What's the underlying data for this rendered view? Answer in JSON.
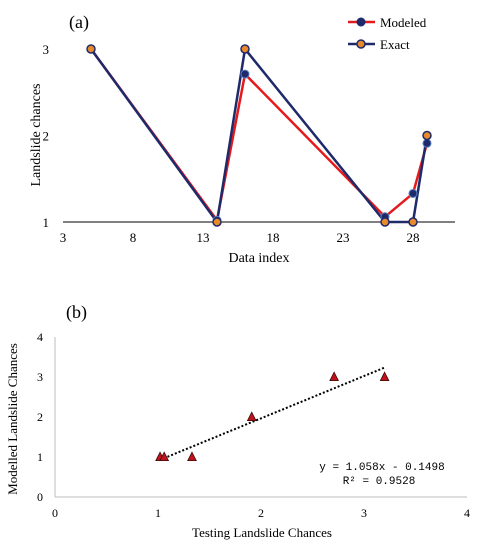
{
  "colors": {
    "modeled": "#e41a1c",
    "exact": "#1f2a6b",
    "marker_fill_modeled": "#1f2a6b",
    "marker_fill_exact": "#e8892a",
    "tri_fill": "#c0121b",
    "axis": "#000000"
  },
  "chart_data": [
    {
      "panel": "(a)",
      "type": "line",
      "xlabel": "Data index",
      "ylabel": "Landslide chances",
      "xlim": [
        3,
        31
      ],
      "ylim": [
        1,
        3
      ],
      "xticks": [
        3,
        8,
        13,
        18,
        23,
        28
      ],
      "yticks": [
        1,
        2,
        3
      ],
      "legend_position": "top-right",
      "series": [
        {
          "name": "Modeled",
          "x": [
            5,
            14,
            16,
            26,
            28,
            29
          ],
          "y": [
            3.0,
            1.02,
            2.71,
            1.06,
            1.33,
            1.91
          ]
        },
        {
          "name": "Exact",
          "x": [
            5,
            14,
            16,
            26,
            28,
            29
          ],
          "y": [
            3.0,
            1.0,
            3.0,
            1.0,
            1.0,
            2.0
          ]
        }
      ]
    },
    {
      "panel": "(b)",
      "type": "scatter",
      "xlabel": "Testing Landslide Chances",
      "ylabel": "Modelled Landslide Chances",
      "xlim": [
        0,
        4
      ],
      "ylim": [
        0,
        4
      ],
      "xticks": [
        0,
        1,
        2,
        3,
        4
      ],
      "yticks": [
        0,
        1,
        2,
        3,
        4
      ],
      "points": [
        {
          "x": 1.02,
          "y": 1.0
        },
        {
          "x": 1.06,
          "y": 1.0
        },
        {
          "x": 1.33,
          "y": 1.0
        },
        {
          "x": 1.91,
          "y": 2.0
        },
        {
          "x": 2.71,
          "y": 3.0
        },
        {
          "x": 3.2,
          "y": 3.0
        }
      ],
      "trendline": {
        "slope": 1.058,
        "intercept": -0.1498,
        "x_range": [
          1.02,
          3.2
        ]
      },
      "equation": "y = 1.058x - 0.1498",
      "r_squared": "R² = 0.9528"
    }
  ]
}
